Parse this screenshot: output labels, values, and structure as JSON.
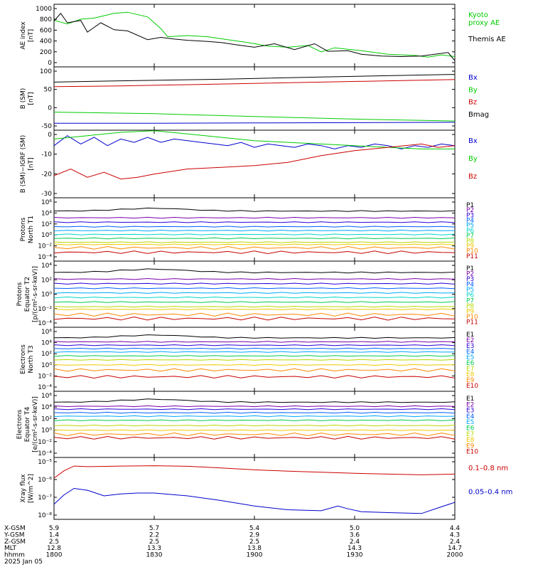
{
  "colors": {
    "black": "#000000",
    "red": "#cc0000",
    "green": "#00cc00",
    "blue": "#0000cc",
    "ladder": [
      "#000000",
      "#7a00a8",
      "#2a00d6",
      "#0060ff",
      "#00a8ff",
      "#00d8c8",
      "#00cc50",
      "#b8d800",
      "#f0c800",
      "#ff8800",
      "#c80000"
    ]
  },
  "chart_data": [
    {
      "type": "line",
      "id": "ae",
      "ylabel": "AE index\n[nT]",
      "yticks": [
        "1000",
        "800",
        "600",
        "400",
        "200",
        "0"
      ],
      "ylim": [
        0,
        1000
      ],
      "xlim": [
        0,
        120
      ],
      "series": [
        {
          "name": "Kyoto\nproxy AE",
          "color": "green",
          "x": [
            0,
            4,
            8,
            12,
            18,
            22,
            28,
            32,
            34,
            40,
            46,
            52,
            58,
            64,
            70,
            76,
            80,
            84,
            92,
            100,
            108,
            112,
            116,
            120
          ],
          "y": [
            760,
            700,
            780,
            800,
            880,
            900,
            820,
            620,
            480,
            500,
            480,
            430,
            380,
            320,
            300,
            330,
            220,
            290,
            240,
            180,
            160,
            130,
            170,
            140
          ]
        },
        {
          "name": "Themis AE",
          "color": "black",
          "x": [
            0,
            2,
            4,
            8,
            10,
            14,
            18,
            22,
            28,
            32,
            36,
            40,
            46,
            50,
            56,
            60,
            66,
            72,
            78,
            82,
            88,
            92,
            98,
            104,
            110,
            114,
            118,
            120
          ],
          "y": [
            750,
            880,
            720,
            760,
            560,
            720,
            600,
            580,
            430,
            470,
            440,
            420,
            400,
            380,
            330,
            300,
            360,
            260,
            360,
            230,
            240,
            180,
            150,
            140,
            150,
            180,
            210,
            70
          ]
        }
      ]
    },
    {
      "type": "line",
      "id": "bsm",
      "ylabel": "B (SM)\n[nT]",
      "yticks": [
        "100",
        "50",
        "0",
        "-50"
      ],
      "ylim": [
        -60,
        125
      ],
      "xlim": [
        0,
        120
      ],
      "series": [
        {
          "name": "Bx",
          "color": "blue",
          "x": [
            0,
            30,
            60,
            90,
            120
          ],
          "y": [
            -45,
            -45,
            -44,
            -43,
            -42
          ]
        },
        {
          "name": "By",
          "color": "green",
          "x": [
            0,
            30,
            60,
            90,
            120
          ],
          "y": [
            -10,
            -15,
            -24,
            -32,
            -38
          ]
        },
        {
          "name": "Bz",
          "color": "red",
          "x": [
            0,
            20,
            50,
            80,
            100,
            120
          ],
          "y": [
            70,
            72,
            78,
            84,
            88,
            92
          ]
        },
        {
          "name": "Bmag",
          "color": "black",
          "x": [
            0,
            20,
            50,
            80,
            100,
            120
          ],
          "y": [
            84,
            88,
            93,
            100,
            104,
            108
          ]
        }
      ]
    },
    {
      "type": "line",
      "id": "bmigrf",
      "ylabel": "B (SM)−IGRF (SM)\n[nT]",
      "yticks": [
        "0",
        "-10",
        "-20",
        "-30"
      ],
      "ylim": [
        -32,
        6
      ],
      "xlim": [
        0,
        120
      ],
      "series": [
        {
          "name": "Bx",
          "color": "blue",
          "x": [
            0,
            4,
            8,
            12,
            16,
            20,
            24,
            28,
            32,
            36,
            40,
            44,
            48,
            52,
            56,
            60,
            64,
            68,
            72,
            76,
            80,
            84,
            88,
            92,
            96,
            100,
            104,
            108,
            112,
            116,
            120
          ],
          "y": [
            -2,
            4,
            -1,
            3,
            -2,
            2,
            0,
            3,
            0,
            2,
            1,
            0,
            -1,
            -2,
            0,
            -3,
            -1,
            -2,
            -3,
            -1,
            -2,
            -4,
            -2,
            -3,
            -1,
            -2,
            -4,
            -2,
            -3,
            -1,
            -2
          ]
        },
        {
          "name": "By",
          "color": "green",
          "x": [
            0,
            10,
            20,
            30,
            40,
            50,
            60,
            70,
            80,
            90,
            100,
            110,
            120
          ],
          "y": [
            2,
            4,
            6,
            7,
            5,
            3,
            1,
            0,
            -1,
            -2,
            -3,
            -4,
            -4
          ]
        },
        {
          "name": "Bz",
          "color": "red",
          "x": [
            0,
            5,
            10,
            15,
            20,
            25,
            30,
            40,
            50,
            60,
            70,
            80,
            90,
            100,
            110,
            115,
            120
          ],
          "y": [
            -20,
            -16,
            -21,
            -18,
            -22,
            -21,
            -19,
            -16,
            -15,
            -14,
            -12,
            -8,
            -5,
            -3,
            -1,
            -3,
            -2
          ]
        }
      ]
    },
    {
      "type": "line",
      "id": "protons_t1",
      "ylog": true,
      "ylabel": "Protons\nNorth T1",
      "yticks": [
        "10⁶",
        "10⁴",
        "10²",
        "10⁰",
        "10⁻²",
        "10⁻⁴"
      ],
      "ylim": [
        -4.6,
        6
      ],
      "xlim": [
        0,
        120
      ],
      "channels": [
        "P1",
        "P2",
        "P3",
        "P4",
        "P5",
        "P6",
        "P7",
        "P8",
        "P9",
        "P10",
        "P11"
      ],
      "levels": [
        4.0,
        2.8,
        2.0,
        1.2,
        0.5,
        -0.2,
        -0.9,
        -1.6,
        -2.0,
        -2.6,
        -3.4
      ]
    },
    {
      "type": "line",
      "id": "protons_t2",
      "ylog": true,
      "ylabel": "Protons\nEquator T2\n[p/(cm²-s-sr-keV)]",
      "yticks": [
        "10⁴",
        "10²",
        "10⁰",
        "10⁻²",
        "10⁻⁴"
      ],
      "ylim": [
        -4.4,
        5
      ],
      "xlim": [
        0,
        120
      ],
      "channels": [
        "P1",
        "P2",
        "P3",
        "P4",
        "P5",
        "P6",
        "P7",
        "P8",
        "P9",
        "P10",
        "P11"
      ],
      "levels": [
        3.6,
        2.6,
        1.9,
        1.2,
        0.5,
        -0.2,
        -0.9,
        -1.6,
        -2.0,
        -2.8,
        -3.4
      ]
    },
    {
      "type": "line",
      "id": "electrons_t3",
      "ylog": true,
      "ylabel": "Electrons\nNorth T3",
      "yticks": [
        "10⁶",
        "10⁴",
        "10²",
        "10⁰",
        "10⁻²",
        "10⁻⁴"
      ],
      "ylim": [
        -4.6,
        6
      ],
      "xlim": [
        0,
        120
      ],
      "channels": [
        "E1",
        "E2",
        "E3",
        "E4",
        "E5",
        "E6",
        "E7",
        "E8",
        "E9",
        "E10"
      ],
      "levels": [
        4.5,
        3.8,
        3.2,
        2.6,
        2.0,
        1.3,
        0.6,
        -0.3,
        -1.2,
        -2.4
      ]
    },
    {
      "type": "line",
      "id": "electrons_t4",
      "ylog": true,
      "ylabel": "Electrons\nEquator T4\n[e/(cm²-s-sr-keV)]",
      "yticks": [
        "10⁶",
        "10⁴",
        "10²",
        "10⁰",
        "10⁻²",
        "10⁻⁴"
      ],
      "ylim": [
        -4.6,
        6
      ],
      "xlim": [
        0,
        120
      ],
      "channels": [
        "E1",
        "E2",
        "E3",
        "E4",
        "E5",
        "E6",
        "E7",
        "E8",
        "E9",
        "E10"
      ],
      "levels": [
        4.5,
        3.8,
        3.3,
        2.7,
        2.1,
        1.4,
        0.5,
        -0.3,
        -1.0,
        -1.6
      ]
    },
    {
      "type": "line",
      "id": "xray",
      "ylog": true,
      "ylabel": "Xray flux\n[W/m^2]",
      "yticks": [
        "10⁻⁵",
        "10⁻⁶",
        "10⁻⁷",
        "10⁻⁸"
      ],
      "ylim": [
        -8.1,
        -5
      ],
      "xlim": [
        0,
        120
      ],
      "series": [
        {
          "name": "0.1–0.8 nm",
          "color": "red",
          "x": [
            0,
            3,
            6,
            10,
            20,
            30,
            40,
            50,
            60,
            70,
            80,
            90,
            100,
            110,
            120
          ],
          "y": [
            -6.0,
            -5.6,
            -5.35,
            -5.38,
            -5.35,
            -5.33,
            -5.36,
            -5.45,
            -5.55,
            -5.62,
            -5.68,
            -5.74,
            -5.78,
            -5.82,
            -5.78
          ]
        },
        {
          "name": "0.05–0.4 nm",
          "color": "blue",
          "x": [
            0,
            3,
            6,
            10,
            15,
            20,
            25,
            30,
            40,
            50,
            60,
            70,
            80,
            85,
            88,
            92,
            100,
            110,
            115,
            120
          ],
          "y": [
            -7.4,
            -6.9,
            -6.55,
            -6.65,
            -6.95,
            -6.85,
            -6.8,
            -6.8,
            -6.95,
            -7.2,
            -7.5,
            -7.7,
            -7.75,
            -7.5,
            -7.65,
            -7.8,
            -7.85,
            -7.9,
            -7.6,
            -7.3
          ]
        }
      ]
    }
  ],
  "xaxis": {
    "row_labels": [
      "X-GSM",
      "Y-GSM",
      "Z-GSM",
      "MLT",
      "hhmm",
      "2025 Jan 05"
    ],
    "ticks": [
      {
        "t": 0,
        "values": [
          "5.9",
          "1.4",
          "2.5",
          "12.8",
          "1800"
        ]
      },
      {
        "t": 30,
        "values": [
          "5.7",
          "2.2",
          "2.5",
          "13.3",
          "1830"
        ]
      },
      {
        "t": 60,
        "values": [
          "5.4",
          "2.9",
          "2.5",
          "13.8",
          "1900"
        ]
      },
      {
        "t": 90,
        "values": [
          "5.0",
          "3.6",
          "2.4",
          "14.3",
          "1930"
        ]
      },
      {
        "t": 120,
        "values": [
          "4.4",
          "4.3",
          "2.4",
          "14.7",
          "2000"
        ]
      }
    ]
  }
}
